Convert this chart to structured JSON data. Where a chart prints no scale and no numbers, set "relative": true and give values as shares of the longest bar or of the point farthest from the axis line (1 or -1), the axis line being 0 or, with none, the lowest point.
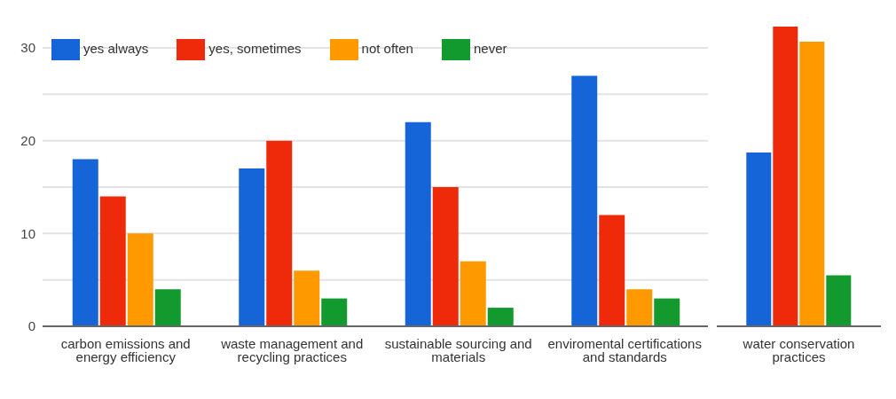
{
  "chart_data": [
    {
      "type": "bar",
      "categories": [
        "carbon emissions and energy efficiency",
        "waste management and recycling practices",
        "sustainable sourcing and materials",
        "enviromental certifications and standards"
      ],
      "series": [
        {
          "name": "yes always",
          "color": "#1565d8",
          "values": [
            18,
            17,
            22,
            27
          ]
        },
        {
          "name": "yes, sometimes",
          "color": "#ee2a0a",
          "values": [
            14,
            20,
            15,
            12
          ]
        },
        {
          "name": "not often",
          "color": "#ff9900",
          "values": [
            10,
            6,
            7,
            4
          ]
        },
        {
          "name": "never",
          "color": "#129a2e",
          "values": [
            4,
            3,
            2,
            3
          ]
        }
      ],
      "ylim": [
        0,
        30
      ],
      "yticks": [
        0,
        {
          "value": 5,
          "label": null
        },
        10,
        {
          "value": 15,
          "label": null
        },
        20,
        {
          "value": 25,
          "label": null
        },
        30
      ],
      "grid": "y",
      "legend": "top left"
    },
    {
      "type": "bar",
      "relative": true,
      "categories": [
        "water conservation practices"
      ],
      "series": [
        {
          "color": "#1565d8",
          "values": [
            0.58
          ]
        },
        {
          "color": "#ee2a0a",
          "values": [
            1
          ]
        },
        {
          "color": "#ff9900",
          "values": [
            0.95
          ]
        },
        {
          "color": "#129a2e",
          "values": [
            0.17
          ]
        }
      ]
    }
  ]
}
